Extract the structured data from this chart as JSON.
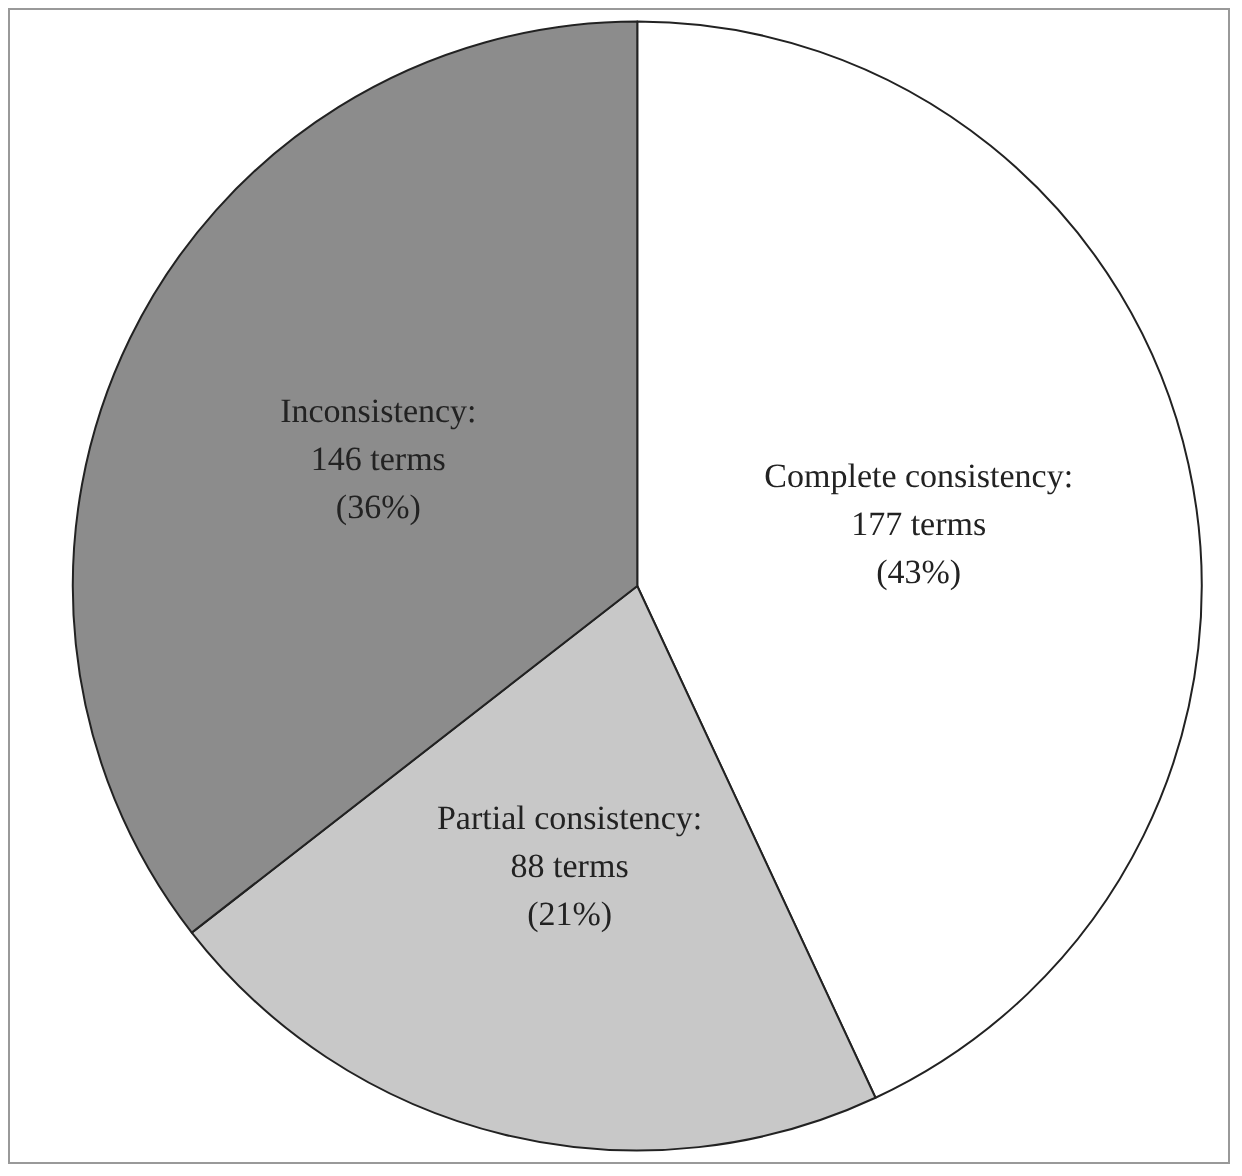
{
  "chart_data": {
    "type": "pie",
    "categories": [
      "Complete consistency",
      "Partial consistency",
      "Inconsistency"
    ],
    "values": [
      177,
      88,
      146
    ],
    "value_labels": [
      ":\n177 terms\n(43%)",
      ":\n88 terms\n(21%)",
      ":\n146 terms\n(36%)"
    ],
    "colors": [
      "#ffffff",
      "#c8c8c8",
      "#8c8c8c"
    ],
    "legend": false
  }
}
